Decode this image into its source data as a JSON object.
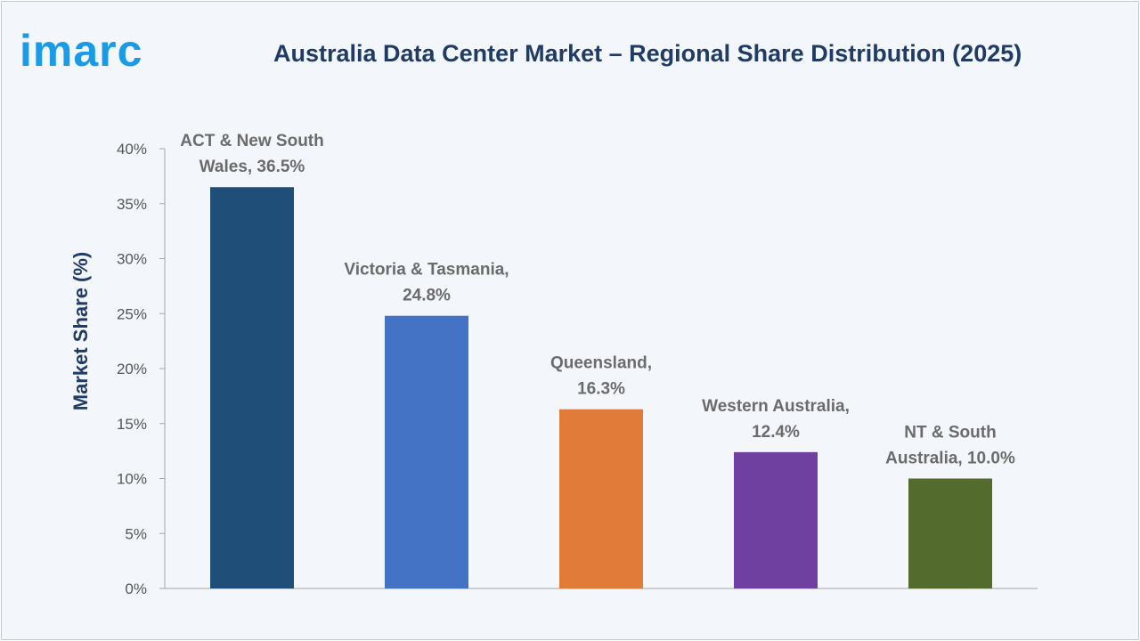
{
  "brand": {
    "logo_text": "imarc",
    "logo_color": "#1a9be6"
  },
  "chart_data": {
    "type": "bar",
    "title": "Australia Data Center Market – Regional Share Distribution (2025)",
    "ylabel": "Market Share (%)",
    "xlabel": "",
    "ylim": [
      0,
      40
    ],
    "yticks": [
      0,
      5,
      10,
      15,
      20,
      25,
      30,
      35,
      40
    ],
    "ytick_labels": [
      "0%",
      "5%",
      "10%",
      "15%",
      "20%",
      "25%",
      "30%",
      "35%",
      "40%"
    ],
    "grid": false,
    "categories": [
      "ACT & New South Wales",
      "Victoria & Tasmania",
      "Queensland",
      "Western Australia",
      "NT & South Australia"
    ],
    "values": [
      36.5,
      24.8,
      16.3,
      12.4,
      10.0
    ],
    "colors": [
      "#1f4e79",
      "#4472c4",
      "#e07b39",
      "#7040a0",
      "#546b2e"
    ],
    "data_labels": [
      [
        "ACT & New South",
        "Wales, 36.5%"
      ],
      [
        "Victoria & Tasmania,",
        "24.8%"
      ],
      [
        "Queensland,",
        "16.3%"
      ],
      [
        "Western Australia,",
        "12.4%"
      ],
      [
        "NT & South",
        "Australia, 10.0%"
      ]
    ]
  }
}
